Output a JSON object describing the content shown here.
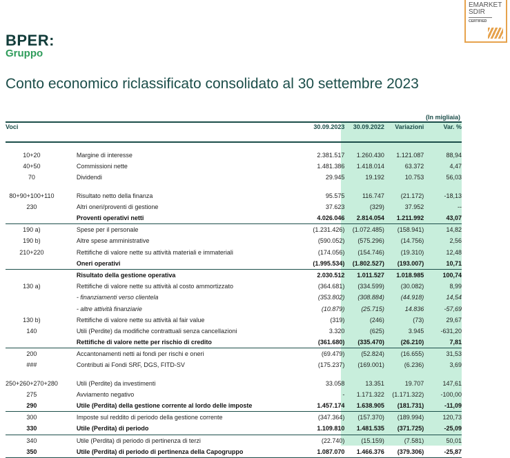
{
  "logo": {
    "brand": "BPER:",
    "sub": "Gruppo"
  },
  "badge": {
    "line1": "EMARKET",
    "line2": "SDIR",
    "line3": "CERTIFIED"
  },
  "title": "Conto economico riclassificato consolidato al 30 settembre 2023",
  "unit": "(In migliaia)",
  "headers": {
    "voci": "Voci",
    "c1": "30.09.2023",
    "c2": "30.09.2022",
    "c3": "Variazioni",
    "c4": "Var. %"
  },
  "colors": {
    "accent": "#1b4d49",
    "highlight": "#c8eedc",
    "brand_green": "#2f9c5b"
  },
  "rows": [
    {
      "code": "10+20",
      "label": "Margine di interesse",
      "v2023": "2.381.517",
      "v2022": "1.260.430",
      "var": "1.121.087",
      "pct": "88,94"
    },
    {
      "code": "40+50",
      "label": "Commissioni nette",
      "v2023": "1.481.386",
      "v2022": "1.418.014",
      "var": "63.372",
      "pct": "4,47"
    },
    {
      "code": "70",
      "label": "Dividendi",
      "v2023": "29.945",
      "v2022": "19.192",
      "var": "10.753",
      "pct": "56,03"
    },
    {
      "code": "80+90+100+110",
      "label": "Risultato netto della finanza",
      "v2023": "95.575",
      "v2022": "116.747",
      "var": "(21.172)",
      "pct": "-18,13"
    },
    {
      "code": "230",
      "label": "Altri oneri/proventi di gestione",
      "v2023": "37.623",
      "v2022": "(329)",
      "var": "37.952",
      "pct": "--"
    },
    {
      "code": "",
      "label": "Proventi operativi netti",
      "v2023": "4.026.046",
      "v2022": "2.814.054",
      "var": "1.211.992",
      "pct": "43,07"
    },
    {
      "code": "190 a)",
      "label": "Spese per il personale",
      "v2023": "(1.231.426)",
      "v2022": "(1.072.485)",
      "var": "(158.941)",
      "pct": "14,82"
    },
    {
      "code": "190 b)",
      "label": "Altre spese amministrative",
      "v2023": "(590.052)",
      "v2022": "(575.296)",
      "var": "(14.756)",
      "pct": "2,56"
    },
    {
      "code": "210+220",
      "label": "Rettifiche di valore nette su attività materiali e immateriali",
      "v2023": "(174.056)",
      "v2022": "(154.746)",
      "var": "(19.310)",
      "pct": "12,48"
    },
    {
      "code": "",
      "label": "Oneri operativi",
      "v2023": "(1.995.534)",
      "v2022": "(1.802.527)",
      "var": "(193.007)",
      "pct": "10,71"
    },
    {
      "code": "",
      "label": "Risultato della gestione operativa",
      "v2023": "2.030.512",
      "v2022": "1.011.527",
      "var": "1.018.985",
      "pct": "100,74"
    },
    {
      "code": "130 a)",
      "label": "Rettifiche di valore nette su attività al costo ammortizzato",
      "v2023": "(364.681)",
      "v2022": "(334.599)",
      "var": "(30.082)",
      "pct": "8,99"
    },
    {
      "code": "",
      "label": "- finanziamenti verso clientela",
      "v2023": "(353.802)",
      "v2022": "(308.884)",
      "var": "(44.918)",
      "pct": "14,54"
    },
    {
      "code": "",
      "label": "- altre attività finanziarie",
      "v2023": "(10.879)",
      "v2022": "(25.715)",
      "var": "14.836",
      "pct": "-57,69"
    },
    {
      "code": "130 b)",
      "label": "Rettifiche di valore nette su attività al fair value",
      "v2023": "(319)",
      "v2022": "(246)",
      "var": "(73)",
      "pct": "29,67"
    },
    {
      "code": "140",
      "label": "Utili (Perdite) da modifiche contrattuali senza cancellazioni",
      "v2023": "3.320",
      "v2022": "(625)",
      "var": "3.945",
      "pct": "-631,20"
    },
    {
      "code": "",
      "label": "Rettifiche di valore nette per rischio di credito",
      "v2023": "(361.680)",
      "v2022": "(335.470)",
      "var": "(26.210)",
      "pct": "7,81"
    },
    {
      "code": "200",
      "label": "Accantonamenti netti ai fondi per rischi e oneri",
      "v2023": "(69.479)",
      "v2022": "(52.824)",
      "var": "(16.655)",
      "pct": "31,53"
    },
    {
      "code": "###",
      "label": "Contributi ai Fondi SRF, DGS, FITD-SV",
      "v2023": "(175.237)",
      "v2022": "(169.001)",
      "var": "(6.236)",
      "pct": "3,69"
    },
    {
      "code": "250+260+270+280",
      "label": "Utili (Perdite) da investimenti",
      "v2023": "33.058",
      "v2022": "13.351",
      "var": "19.707",
      "pct": "147,61"
    },
    {
      "code": "275",
      "label": "Avviamento negativo",
      "v2023": "-",
      "v2022": "1.171.322",
      "var": "(1.171.322)",
      "pct": "-100,00"
    },
    {
      "code": "290",
      "label": "Utile (Perdita) della gestione corrente al lordo delle imposte",
      "v2023": "1.457.174",
      "v2022": "1.638.905",
      "var": "(181.731)",
      "pct": "-11,09"
    },
    {
      "code": "300",
      "label": "Imposte sul reddito di periodo della gestione corrente",
      "v2023": "(347.364)",
      "v2022": "(157.370)",
      "var": "(189.994)",
      "pct": "120,73"
    },
    {
      "code": "330",
      "label": "Utile (Perdita) di periodo",
      "v2023": "1.109.810",
      "v2022": "1.481.535",
      "var": "(371.725)",
      "pct": "-25,09"
    },
    {
      "code": "340",
      "label": "Utile (Perdita) di periodo di pertinenza di terzi",
      "v2023": "(22.740)",
      "v2022": "(15.159)",
      "var": "(7.581)",
      "pct": "50,01"
    },
    {
      "code": "350",
      "label": "Utile (Perdita) di periodo di pertinenza della Capogruppo",
      "v2023": "1.087.070",
      "v2022": "1.466.376",
      "var": "(379.306)",
      "pct": "-25,87"
    }
  ]
}
